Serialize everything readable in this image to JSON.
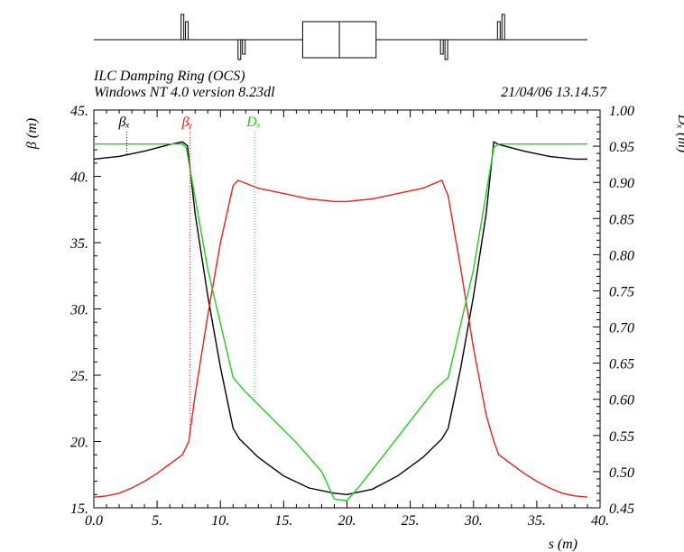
{
  "chart_data": {
    "type": "line",
    "title_line1": "ILC Damping Ring (OCS)",
    "title_line2": "Windows NT 4.0 version 8.23dl",
    "timestamp": "21/04/06  13.14.57",
    "xlabel": "s (m)",
    "ylabel_left": "β  (m)",
    "ylabel_right": "Dₓ (m)",
    "xlim": [
      0,
      40
    ],
    "ylim_left": [
      15,
      45
    ],
    "ylim_right": [
      0.45,
      1.0
    ],
    "x_ticks": [
      0,
      5,
      10,
      15,
      20,
      25,
      30,
      35,
      40
    ],
    "x_tick_labels": [
      "0.0",
      "5.",
      "10.",
      "15.",
      "20.",
      "25.",
      "30.",
      "35.",
      "40."
    ],
    "y_left_ticks": [
      15,
      20,
      25,
      30,
      35,
      40,
      45
    ],
    "y_left_tick_labels": [
      "15.",
      "20.",
      "25.",
      "30.",
      "35.",
      "40.",
      "45."
    ],
    "y_right_ticks": [
      0.45,
      0.5,
      0.55,
      0.6,
      0.65,
      0.7,
      0.75,
      0.8,
      0.85,
      0.9,
      0.95,
      1.0
    ],
    "y_right_tick_labels": [
      "0.45",
      "0.50",
      "0.55",
      "0.60",
      "0.65",
      "0.70",
      "0.75",
      "0.80",
      "0.85",
      "0.90",
      "0.95",
      "1.00"
    ],
    "legend": [
      {
        "name": "βₓ",
        "color": "#000000",
        "x": 2.6
      },
      {
        "name": "βᵧ",
        "color": "#e8201e",
        "x": 7.6
      },
      {
        "name": "Dₓ",
        "color": "#22cc22",
        "x": 12.7
      }
    ],
    "series": [
      {
        "name": "βₓ",
        "axis": "left",
        "color": "#000000",
        "x": [
          0,
          2,
          4,
          6,
          7,
          7.4,
          8,
          9,
          10,
          11,
          11.5,
          13,
          15,
          17,
          19,
          20,
          22,
          24,
          26,
          27.5,
          28,
          29,
          30,
          31,
          31.6,
          32,
          34,
          36,
          38,
          39
        ],
        "y": [
          41.3,
          41.5,
          41.9,
          42.4,
          42.6,
          42.3,
          37.2,
          31.0,
          25.6,
          21.0,
          20.2,
          18.8,
          17.4,
          16.5,
          16.1,
          16.0,
          16.4,
          17.4,
          18.8,
          20.2,
          21.0,
          25.6,
          31.0,
          37.2,
          42.6,
          42.4,
          41.9,
          41.5,
          41.3,
          41.3
        ]
      },
      {
        "name": "βᵧ",
        "axis": "left",
        "color": "#e8201e",
        "x": [
          0,
          1,
          2,
          3,
          4,
          5,
          6,
          7,
          7.5,
          8,
          9,
          10,
          11,
          11.4,
          13,
          15,
          17,
          19,
          20,
          22,
          24,
          26,
          27.5,
          28,
          29,
          30,
          31,
          31.6,
          32,
          33,
          34,
          35,
          36,
          37,
          38,
          39
        ],
        "y": [
          15.8,
          15.9,
          16.1,
          16.5,
          17.0,
          17.6,
          18.3,
          19.0,
          20.0,
          23.5,
          29.5,
          35.0,
          39.3,
          39.7,
          39.1,
          38.7,
          38.3,
          38.1,
          38.1,
          38.3,
          38.7,
          39.1,
          39.7,
          38.5,
          33.0,
          27.0,
          22.0,
          20.0,
          19.0,
          18.3,
          17.6,
          17.0,
          16.5,
          16.1,
          15.9,
          15.8
        ]
      },
      {
        "name": "Dₓ",
        "axis": "right",
        "color": "#22cc22",
        "x": [
          0,
          4,
          7,
          7.3,
          9,
          11,
          12,
          14,
          16,
          18,
          19,
          20,
          21,
          23,
          25,
          27,
          28,
          30,
          31.6,
          32,
          35,
          39
        ],
        "y": [
          0.953,
          0.953,
          0.953,
          0.948,
          0.78,
          0.63,
          0.61,
          0.575,
          0.54,
          0.5,
          0.462,
          0.46,
          0.48,
          0.525,
          0.57,
          0.615,
          0.63,
          0.78,
          0.948,
          0.953,
          0.953,
          0.953
        ]
      }
    ],
    "lattice": {
      "dipoles": [
        {
          "s0": 16.5,
          "s1": 22.3
        }
      ],
      "focusing_quads": [
        1.5,
        2.1,
        31.9,
        32.5
      ],
      "defocusing_quads": [
        7.5,
        8.1,
        26.9,
        27.5
      ],
      "center_line": 19.4
    }
  }
}
